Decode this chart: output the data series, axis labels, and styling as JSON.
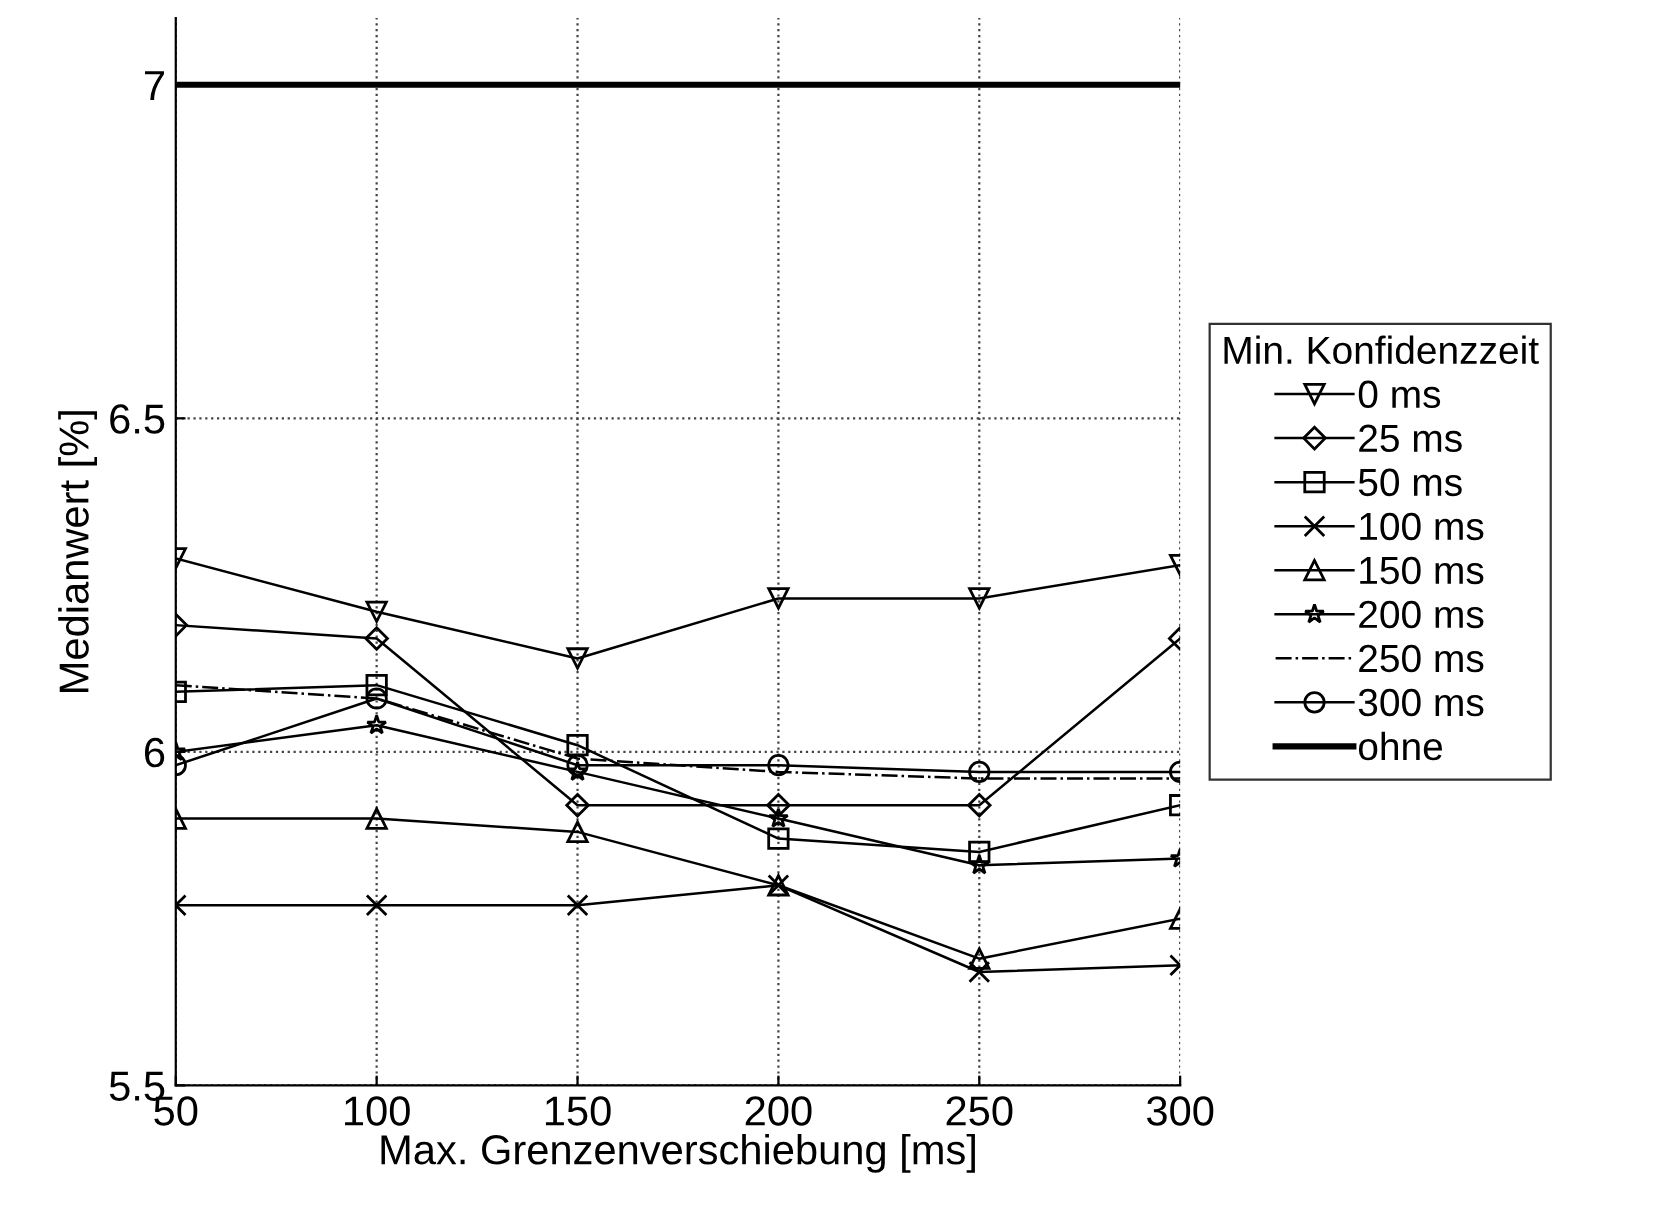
{
  "chart_data": {
    "type": "line",
    "xlabel": "Max. Grenzenverschiebung [ms]",
    "ylabel": "Medianwert [%]",
    "legend_title": "Min. Konfidenzzeit",
    "legend": "right",
    "grid": true,
    "x": [
      50,
      100,
      150,
      200,
      250,
      300
    ],
    "xlim": [
      50,
      300
    ],
    "xticks": [
      50,
      100,
      150,
      200,
      250,
      300
    ],
    "ylim": [
      5.5,
      7.1
    ],
    "yticks": [
      5.5,
      6.5,
      6,
      7
    ],
    "series": [
      {
        "name": "0 ms",
        "color": "#000000",
        "marker": "triangle",
        "line_style": "solid",
        "values": [
          6.29,
          6.21,
          6.14,
          6.23,
          6.23,
          6.28
        ]
      },
      {
        "name": "25 ms",
        "color": "#000000",
        "marker": "diamond",
        "line_style": "solid",
        "values": [
          6.19,
          6.17,
          5.92,
          5.92,
          5.92,
          6.17
        ]
      },
      {
        "name": "50 ms",
        "color": "#000000",
        "marker": "square",
        "line_style": "solid",
        "values": [
          6.09,
          6.1,
          6.01,
          5.87,
          5.85,
          5.92
        ]
      },
      {
        "name": "100 ms",
        "color": "#000000",
        "marker": "cross",
        "line_style": "solid",
        "values": [
          5.77,
          5.77,
          5.77,
          5.8,
          5.67,
          5.68
        ]
      },
      {
        "name": "150 ms",
        "color": "#000000",
        "marker": "triangle",
        "line_style": "solid",
        "values": [
          5.9,
          5.9,
          5.88,
          5.8,
          5.69,
          5.75
        ]
      },
      {
        "name": "200 ms",
        "color": "#000000",
        "marker": "star",
        "line_style": "solid",
        "values": [
          6.0,
          6.04,
          5.97,
          5.9,
          5.83,
          5.84
        ]
      },
      {
        "name": "250 ms",
        "color": "#000000",
        "marker": "none",
        "line_style": "dashdot",
        "values": [
          6.1,
          6.08,
          5.99,
          5.97,
          5.96,
          5.96
        ]
      },
      {
        "name": "300 ms",
        "color": "#000000",
        "marker": "circle",
        "line_style": "solid",
        "values": [
          5.98,
          6.08,
          5.98,
          5.98,
          5.97,
          5.97
        ]
      },
      {
        "name": "ohne",
        "color": "#000000",
        "marker": "none",
        "line_style": "solid",
        "values": [
          7,
          7,
          7,
          7,
          7,
          7
        ]
      }
    ]
  }
}
